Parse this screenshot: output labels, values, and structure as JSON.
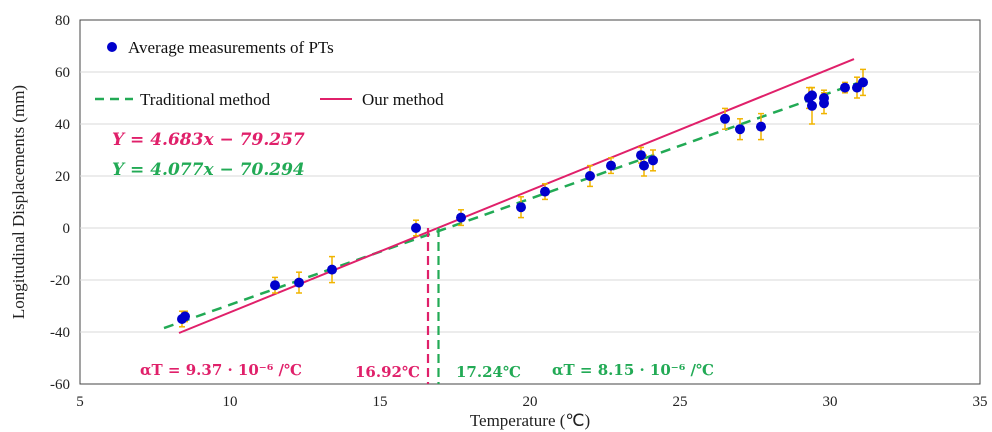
{
  "chart_data": {
    "type": "scatter",
    "title": "",
    "xlabel": "Temperature (℃)",
    "ylabel": "Longitudinal Displacements (mm)",
    "xlim": [
      5,
      35
    ],
    "ylim": [
      -60,
      80
    ],
    "xticks": [
      5,
      10,
      15,
      20,
      25,
      30,
      35
    ],
    "yticks": [
      -60,
      -40,
      -20,
      0,
      20,
      40,
      60,
      80
    ],
    "grid": "horizontal",
    "legend_position": "top-left",
    "series": [
      {
        "name": "Average measurements of PTs",
        "kind": "points_with_error_bars",
        "color": "#0000cc",
        "error_color": "#f0b400",
        "points": [
          {
            "x": 8.4,
            "y": -35,
            "err": 3
          },
          {
            "x": 8.5,
            "y": -34,
            "err": 2
          },
          {
            "x": 11.5,
            "y": -22,
            "err": 3
          },
          {
            "x": 12.3,
            "y": -21,
            "err": 4
          },
          {
            "x": 13.4,
            "y": -16,
            "err": 5
          },
          {
            "x": 16.2,
            "y": 0,
            "err": 3
          },
          {
            "x": 17.7,
            "y": 4,
            "err": 3
          },
          {
            "x": 19.7,
            "y": 8,
            "err": 4
          },
          {
            "x": 20.5,
            "y": 14,
            "err": 3
          },
          {
            "x": 22.0,
            "y": 20,
            "err": 4
          },
          {
            "x": 22.7,
            "y": 24,
            "err": 3
          },
          {
            "x": 23.7,
            "y": 28,
            "err": 3
          },
          {
            "x": 23.8,
            "y": 24,
            "err": 4
          },
          {
            "x": 24.1,
            "y": 26,
            "err": 4
          },
          {
            "x": 26.5,
            "y": 42,
            "err": 4
          },
          {
            "x": 27.0,
            "y": 38,
            "err": 4
          },
          {
            "x": 27.7,
            "y": 39,
            "err": 5
          },
          {
            "x": 29.3,
            "y": 50,
            "err": 4
          },
          {
            "x": 29.4,
            "y": 51,
            "err": 3
          },
          {
            "x": 29.4,
            "y": 47,
            "err": 7
          },
          {
            "x": 29.8,
            "y": 48,
            "err": 4
          },
          {
            "x": 29.8,
            "y": 50,
            "err": 3
          },
          {
            "x": 30.5,
            "y": 54,
            "err": 2
          },
          {
            "x": 30.9,
            "y": 54,
            "err": 4
          },
          {
            "x": 31.1,
            "y": 56,
            "err": 5
          }
        ]
      },
      {
        "name": "Traditional method",
        "kind": "fit_line",
        "color": "#22aa55",
        "dashed": true,
        "slope": 4.077,
        "intercept": -70.294,
        "x_range": [
          7.8,
          31.0
        ]
      },
      {
        "name": "Our method",
        "kind": "fit_line",
        "color": "#e0206a",
        "dashed": false,
        "slope": 4.683,
        "intercept": -79.257,
        "x_range": [
          8.3,
          30.8
        ]
      }
    ],
    "equations": {
      "ours": "Y = 4.683x − 79.257",
      "traditional": "Y = 4.077x − 70.294"
    },
    "annotations": {
      "ours_zero_temp": "16.92℃",
      "traditional_zero_temp": "17.24℃",
      "ours_alpha": "αT = 9.37 · 10⁻⁶ /℃",
      "traditional_alpha": "αT = 8.15 · 10⁻⁶ /℃",
      "ours_zero_x": 16.6,
      "traditional_zero_x": 16.95
    },
    "colors": {
      "ours": "#e0206a",
      "traditional": "#22aa55",
      "points": "#0000cc",
      "error": "#f0b400"
    }
  }
}
